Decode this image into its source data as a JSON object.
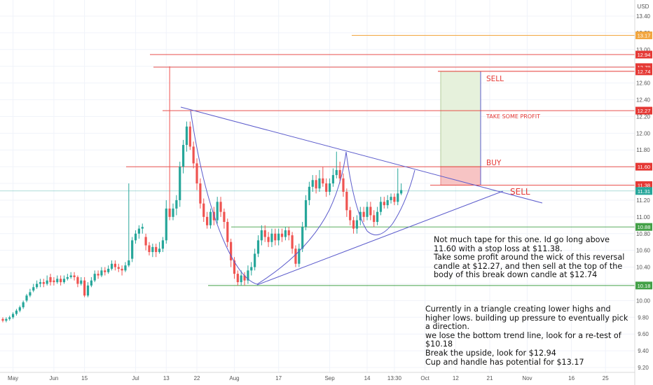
{
  "currency": "USD",
  "chart_data": {
    "type": "candlestick",
    "ylim": [
      9.15,
      13.5
    ],
    "y_ticks": [
      9.2,
      9.4,
      9.6,
      9.8,
      10.0,
      10.2,
      10.4,
      10.6,
      10.8,
      11.0,
      11.2,
      11.4,
      11.6,
      11.8,
      12.0,
      12.2,
      12.4,
      12.6,
      12.8,
      13.0,
      13.2,
      13.4
    ],
    "x_ticks": [
      {
        "label": "May",
        "bar": 3
      },
      {
        "label": "Jun",
        "bar": 15
      },
      {
        "label": "15",
        "bar": 24
      },
      {
        "label": "Jul",
        "bar": 39
      },
      {
        "label": "13",
        "bar": 48
      },
      {
        "label": "22",
        "bar": 57
      },
      {
        "label": "Aug",
        "bar": 68
      },
      {
        "label": "17",
        "bar": 81
      },
      {
        "label": "Sep",
        "bar": 96
      },
      {
        "label": "14",
        "bar": 107
      },
      {
        "label": "13:30",
        "bar": 115
      },
      {
        "label": "Oct",
        "bar": 124
      },
      {
        "label": "12",
        "bar": 133
      },
      {
        "label": "21",
        "bar": 143
      },
      {
        "label": "Nov",
        "bar": 154
      },
      {
        "label": "16",
        "bar": 167
      },
      {
        "label": "25",
        "bar": 177
      }
    ],
    "candles": [
      [
        9.78,
        9.76,
        9.8,
        9.74
      ],
      [
        9.76,
        9.78,
        9.8,
        9.74
      ],
      [
        9.78,
        9.8,
        9.82,
        9.76
      ],
      [
        9.8,
        9.84,
        9.86,
        9.78
      ],
      [
        9.84,
        9.88,
        9.9,
        9.82
      ],
      [
        9.88,
        9.92,
        9.94,
        9.86
      ],
      [
        9.92,
        9.98,
        10.0,
        9.9
      ],
      [
        10.0,
        10.06,
        10.08,
        9.98
      ],
      [
        10.06,
        10.1,
        10.14,
        10.04
      ],
      [
        10.12,
        10.16,
        10.2,
        10.1
      ],
      [
        10.16,
        10.2,
        10.24,
        10.14
      ],
      [
        10.2,
        10.22,
        10.26,
        10.16
      ],
      [
        10.22,
        10.2,
        10.26,
        10.16
      ],
      [
        10.2,
        10.24,
        10.3,
        10.18
      ],
      [
        10.28,
        10.22,
        10.32,
        10.18
      ],
      [
        10.24,
        10.22,
        10.28,
        10.18
      ],
      [
        10.22,
        10.26,
        10.3,
        10.2
      ],
      [
        10.26,
        10.22,
        10.3,
        10.18
      ],
      [
        10.22,
        10.26,
        10.3,
        10.2
      ],
      [
        10.26,
        10.28,
        10.32,
        10.24
      ],
      [
        10.28,
        10.3,
        10.34,
        10.26
      ],
      [
        10.3,
        10.28,
        10.34,
        10.24
      ],
      [
        10.28,
        10.2,
        10.3,
        10.16
      ],
      [
        10.2,
        10.24,
        10.28,
        10.18
      ],
      [
        10.24,
        10.06,
        10.28,
        10.04
      ],
      [
        10.06,
        10.18,
        10.22,
        10.04
      ],
      [
        10.18,
        10.24,
        10.28,
        10.16
      ],
      [
        10.24,
        10.32,
        10.36,
        10.22
      ],
      [
        10.32,
        10.3,
        10.36,
        10.26
      ],
      [
        10.3,
        10.36,
        10.4,
        10.28
      ],
      [
        10.36,
        10.34,
        10.4,
        10.3
      ],
      [
        10.34,
        10.38,
        10.42,
        10.32
      ],
      [
        10.38,
        10.44,
        10.48,
        10.36
      ],
      [
        10.44,
        10.4,
        10.48,
        10.36
      ],
      [
        10.4,
        10.38,
        10.44,
        10.34
      ],
      [
        10.38,
        10.36,
        10.42,
        10.3
      ],
      [
        10.36,
        10.42,
        10.46,
        10.34
      ],
      [
        10.42,
        10.48,
        11.4,
        10.4
      ],
      [
        10.5,
        10.72,
        10.76,
        10.46
      ],
      [
        10.72,
        10.8,
        10.84,
        10.68
      ],
      [
        10.8,
        10.86,
        10.9,
        10.74
      ],
      [
        10.86,
        10.88,
        10.92,
        10.8
      ],
      [
        10.76,
        10.66,
        10.8,
        10.6
      ],
      [
        10.66,
        10.58,
        10.7,
        10.54
      ],
      [
        10.58,
        10.64,
        10.68,
        10.52
      ],
      [
        10.64,
        10.58,
        10.68,
        10.52
      ],
      [
        10.58,
        10.62,
        10.7,
        10.56
      ],
      [
        10.62,
        10.72,
        10.76,
        10.58
      ],
      [
        10.72,
        11.1,
        11.2,
        10.68
      ],
      [
        11.1,
        11.0,
        12.8,
        10.96
      ],
      [
        11.0,
        11.1,
        11.16,
        10.96
      ],
      [
        11.1,
        11.2,
        11.26,
        11.02
      ],
      [
        11.2,
        11.6,
        11.66,
        11.12
      ],
      [
        11.6,
        11.86,
        11.92,
        11.52
      ],
      [
        11.86,
        12.08,
        12.14,
        11.78
      ],
      [
        12.08,
        11.84,
        12.14,
        11.8
      ],
      [
        11.84,
        11.64,
        11.9,
        11.58
      ],
      [
        11.64,
        11.4,
        11.7,
        11.32
      ],
      [
        11.4,
        11.16,
        11.46,
        11.1
      ],
      [
        11.16,
        11.0,
        11.22,
        10.94
      ],
      [
        11.0,
        10.9,
        11.06,
        10.86
      ],
      [
        10.9,
        11.06,
        11.1,
        10.86
      ],
      [
        11.06,
        10.96,
        11.12,
        10.9
      ],
      [
        10.96,
        11.18,
        11.24,
        10.92
      ],
      [
        11.18,
        11.06,
        11.24,
        11.0
      ],
      [
        11.06,
        10.94,
        11.1,
        10.86
      ],
      [
        10.94,
        10.7,
        10.98,
        10.64
      ],
      [
        10.7,
        10.48,
        10.74,
        10.4
      ],
      [
        10.48,
        10.32,
        10.52,
        10.26
      ],
      [
        10.32,
        10.22,
        10.36,
        10.18
      ],
      [
        10.22,
        10.3,
        10.36,
        10.18
      ],
      [
        10.3,
        10.24,
        10.34,
        10.18
      ],
      [
        10.24,
        10.36,
        10.42,
        10.2
      ],
      [
        10.36,
        10.4,
        10.46,
        10.3
      ],
      [
        10.4,
        10.56,
        10.62,
        10.36
      ],
      [
        10.56,
        10.72,
        10.78,
        10.52
      ],
      [
        10.72,
        10.84,
        10.9,
        10.66
      ],
      [
        10.84,
        10.76,
        10.9,
        10.7
      ],
      [
        10.76,
        10.7,
        10.82,
        10.64
      ],
      [
        10.7,
        10.8,
        10.86,
        10.64
      ],
      [
        10.8,
        10.72,
        10.86,
        10.66
      ],
      [
        10.72,
        10.8,
        10.86,
        10.66
      ],
      [
        10.8,
        10.76,
        10.86,
        10.7
      ],
      [
        10.76,
        10.84,
        10.88,
        10.72
      ],
      [
        10.84,
        10.78,
        10.88,
        10.72
      ],
      [
        10.78,
        10.62,
        10.82,
        10.56
      ],
      [
        10.62,
        10.44,
        10.66,
        10.4
      ],
      [
        10.44,
        10.62,
        10.68,
        10.4
      ],
      [
        10.62,
        10.88,
        10.94,
        10.58
      ],
      [
        10.88,
        11.2,
        11.26,
        10.84
      ],
      [
        11.2,
        11.36,
        11.42,
        11.14
      ],
      [
        11.36,
        11.44,
        11.5,
        11.3
      ],
      [
        11.44,
        11.34,
        11.5,
        11.28
      ],
      [
        11.34,
        11.46,
        11.56,
        11.3
      ],
      [
        11.46,
        11.4,
        11.6,
        11.36
      ],
      [
        11.4,
        11.3,
        11.46,
        11.24
      ],
      [
        11.3,
        11.4,
        11.46,
        11.26
      ],
      [
        11.4,
        11.5,
        11.58,
        11.36
      ],
      [
        11.5,
        11.56,
        11.78,
        11.46
      ],
      [
        11.56,
        11.46,
        11.66,
        11.4
      ],
      [
        11.46,
        11.3,
        11.52,
        11.24
      ],
      [
        11.3,
        11.08,
        11.34,
        11.0
      ],
      [
        11.08,
        10.96,
        11.12,
        10.9
      ],
      [
        10.96,
        10.86,
        11.0,
        10.8
      ],
      [
        10.86,
        10.96,
        11.02,
        10.8
      ],
      [
        10.96,
        11.06,
        11.12,
        10.9
      ],
      [
        11.06,
        11.0,
        11.12,
        10.94
      ],
      [
        11.0,
        11.12,
        11.18,
        10.96
      ],
      [
        11.12,
        11.02,
        11.18,
        10.96
      ],
      [
        11.02,
        10.94,
        11.08,
        10.88
      ],
      [
        10.94,
        11.06,
        11.12,
        10.9
      ],
      [
        11.06,
        11.18,
        11.24,
        11.02
      ],
      [
        11.18,
        11.14,
        11.24,
        11.1
      ],
      [
        11.14,
        11.2,
        11.26,
        11.1
      ],
      [
        11.2,
        11.24,
        11.28,
        11.16
      ],
      [
        11.24,
        11.18,
        11.28,
        11.14
      ],
      [
        11.18,
        11.28,
        11.58,
        11.14
      ],
      [
        11.28,
        11.32,
        11.4,
        11.26
      ]
    ],
    "horizontal_levels": [
      {
        "price": 13.17,
        "label": "13.17",
        "color": "#f2a640"
      },
      {
        "price": 12.94,
        "label": "12.94",
        "color": "#e53935"
      },
      {
        "price": 12.79,
        "label": "12.79",
        "color": "#e53935"
      },
      {
        "price": 12.74,
        "label": "12.74",
        "color": "#e53935"
      },
      {
        "price": 12.27,
        "label": "12.27",
        "color": "#e53935"
      },
      {
        "price": 11.6,
        "label": "11.60",
        "color": "#e53935"
      },
      {
        "price": 11.38,
        "label": "11.38",
        "color": "#e53935"
      },
      {
        "price": 11.31,
        "label": "11.31",
        "color": "#26a69a"
      },
      {
        "price": 10.88,
        "label": "10.88",
        "color": "#43a047"
      },
      {
        "price": 10.18,
        "label": "10.18",
        "color": "#43a047"
      }
    ],
    "position_annotations": {
      "entry": 11.6,
      "stop": 11.38,
      "target": 12.74,
      "labels": {
        "sell_top": "SELL",
        "take_profit": "TAKE SOME PROFIT",
        "buy": "BUY",
        "sell_bottom": "SELL"
      }
    },
    "colors": {
      "up": "#26a69a",
      "down": "#ef5350",
      "trendline": "#5c5ccc",
      "profit_zone": "#e6f1dc",
      "loss_zone": "#f7c4c4"
    }
  },
  "notes": {
    "note_1": "Not much tape for this one. Id go long above 11.60 with a stop loss at $11.38.\nTake some profit around the wick of this reversal candle at $12.27, and then sell at the top of the body of this break down candle at $12.74",
    "note_2": "Currently in a triangle creating lower highs and higher lows. building up pressure to eventually pick a direction.\nwe lose the bottom trend line, look for a re-test of $10.18\nBreak the upside, look for $12.94\nCup and handle has potential for $13.17"
  }
}
